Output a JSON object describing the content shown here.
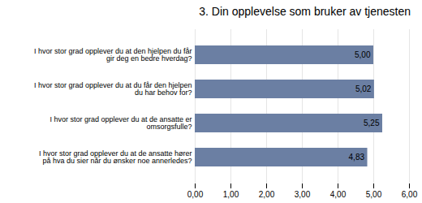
{
  "chart_data": {
    "type": "bar",
    "orientation": "horizontal",
    "title": "3. Din opplevelse som bruker av tjenesten",
    "categories": [
      "I hvor stor grad opplever du at de ansatte hører\npå hva du sier når du ønsker noe annerledes?",
      "I hvor stor grad opplever du at de ansatte er\nomsorgsfulle?",
      "I hvor stor grad opplever du at du får den hjelpen\ndu har behov for?",
      "I hvor stor grad opplever du at den hjelpen du får\ngir deg en bedre hverdag?"
    ],
    "values": [
      4.83,
      5.25,
      5.02,
      5.0
    ],
    "value_labels": [
      "4,83",
      "5,25",
      "5,02",
      "5,00"
    ],
    "data_labels": true,
    "color": "#6b7fa3",
    "xlim": [
      0,
      6.0
    ],
    "xticks": [
      {
        "value": 0.0,
        "label": "0,00"
      },
      {
        "value": 1.0,
        "label": "1,00"
      },
      {
        "value": 2.0,
        "label": "2,00"
      },
      {
        "value": 3.0,
        "label": "3,00"
      },
      {
        "value": 4.0,
        "label": "4,00"
      },
      {
        "value": 5.0,
        "label": "5,00"
      },
      {
        "value": 6.0,
        "label": "6,00"
      }
    ],
    "grid": true
  }
}
